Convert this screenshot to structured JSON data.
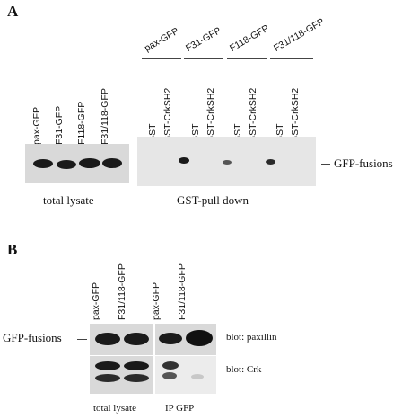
{
  "panel_a": {
    "letter": "A",
    "lysate_lanes": [
      "pax-GFP",
      "F31-GFP",
      "F118-GFP",
      "F31/118-GFP"
    ],
    "pulldown_groups": [
      "pax-GFP",
      "F31-GFP",
      "F118-GFP",
      "F31/118-GFP"
    ],
    "pulldown_lanes": [
      "GST",
      "GST-CrkSH2",
      "GST",
      "GST-CrkSH2",
      "GST",
      "GST-CrkSH2",
      "GST",
      "GST-CrkSH2"
    ],
    "band_label": "GFP-fusions",
    "caption_lysate": "total lysate",
    "caption_pulldown": "GST-pull down"
  },
  "panel_b": {
    "letter": "B",
    "lanes": [
      "pax-GFP",
      "F31/118-GFP",
      "pax-GFP",
      "F31/118-GFP"
    ],
    "band_label": "GFP-fusions",
    "blot_paxillin": "blot: paxillin",
    "blot_crk": "blot: Crk",
    "caption_lysate": "total lysate",
    "caption_ip": "IP GFP"
  },
  "colors": {
    "blot_bg": "#d9d9d9",
    "band": "#1a1a1a"
  }
}
